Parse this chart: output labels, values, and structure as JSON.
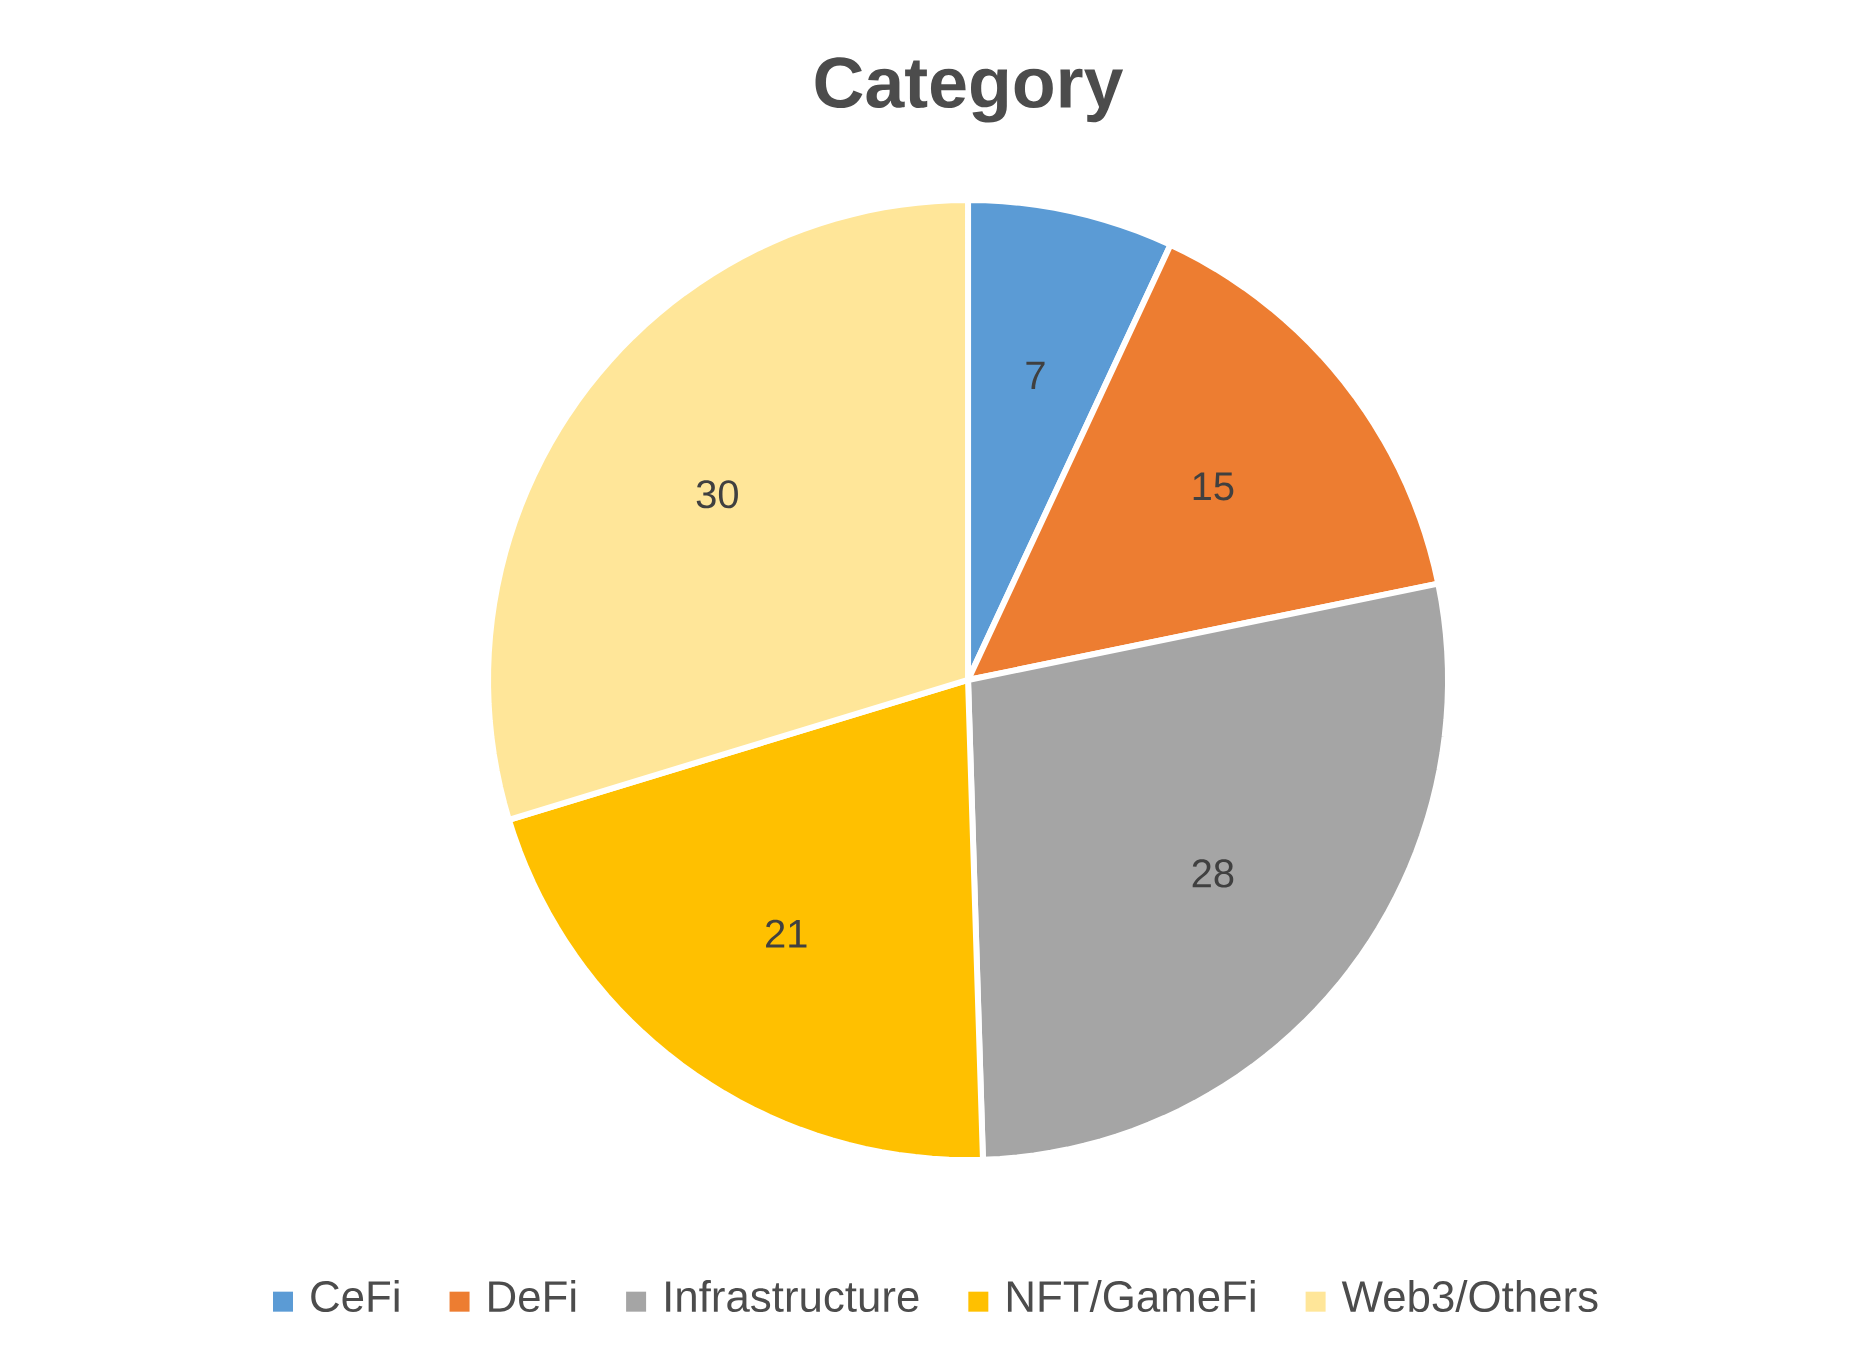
{
  "chart_data": {
    "type": "pie",
    "title": "Category",
    "categories": [
      "CeFi",
      "DeFi",
      "Infrastructure",
      "NFT/GameFi",
      "Web3/Others"
    ],
    "values": [
      7,
      15,
      28,
      21,
      30
    ],
    "colors": [
      "#5b9bd5",
      "#ed7d31",
      "#a5a5a5",
      "#ffc000",
      "#ffe699"
    ],
    "data_labels": true,
    "legend": "bottom"
  }
}
